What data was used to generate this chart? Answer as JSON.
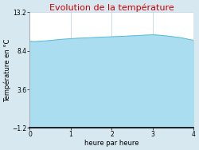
{
  "title": "Evolution de la température",
  "title_color": "#cc0000",
  "xlabel": "heure par heure",
  "ylabel": "Température en °C",
  "xlim": [
    0,
    4
  ],
  "ylim": [
    -1.2,
    13.2
  ],
  "yticks": [
    -1.2,
    3.6,
    8.4,
    13.2
  ],
  "xticks": [
    0,
    1,
    2,
    3,
    4
  ],
  "x": [
    0.0,
    0.1,
    0.2,
    0.3,
    0.4,
    0.5,
    0.6,
    0.7,
    0.8,
    0.9,
    1.0,
    1.1,
    1.2,
    1.3,
    1.4,
    1.5,
    1.6,
    1.7,
    1.8,
    1.9,
    2.0,
    2.1,
    2.2,
    2.3,
    2.4,
    2.5,
    2.6,
    2.7,
    2.8,
    2.9,
    3.0,
    3.1,
    3.2,
    3.3,
    3.4,
    3.5,
    3.6,
    3.7,
    3.8,
    3.9,
    4.0
  ],
  "y": [
    9.6,
    9.55,
    9.58,
    9.62,
    9.65,
    9.7,
    9.75,
    9.8,
    9.85,
    9.88,
    9.92,
    9.95,
    9.98,
    10.0,
    10.02,
    10.05,
    10.07,
    10.1,
    10.12,
    10.14,
    10.16,
    10.18,
    10.2,
    10.22,
    10.25,
    10.27,
    10.3,
    10.33,
    10.36,
    10.38,
    10.4,
    10.37,
    10.33,
    10.28,
    10.22,
    10.16,
    10.1,
    10.02,
    9.92,
    9.8,
    9.72
  ],
  "line_color": "#55bbdd",
  "fill_color": "#aaddf0",
  "fill_bottom": -1.2,
  "bg_color": "#d8e8f0",
  "plot_bg_color": "#ffffff",
  "grid_color": "#bbccdd",
  "figsize": [
    2.5,
    1.88
  ],
  "dpi": 100,
  "title_fontsize": 8,
  "label_fontsize": 6,
  "tick_fontsize": 5.5
}
